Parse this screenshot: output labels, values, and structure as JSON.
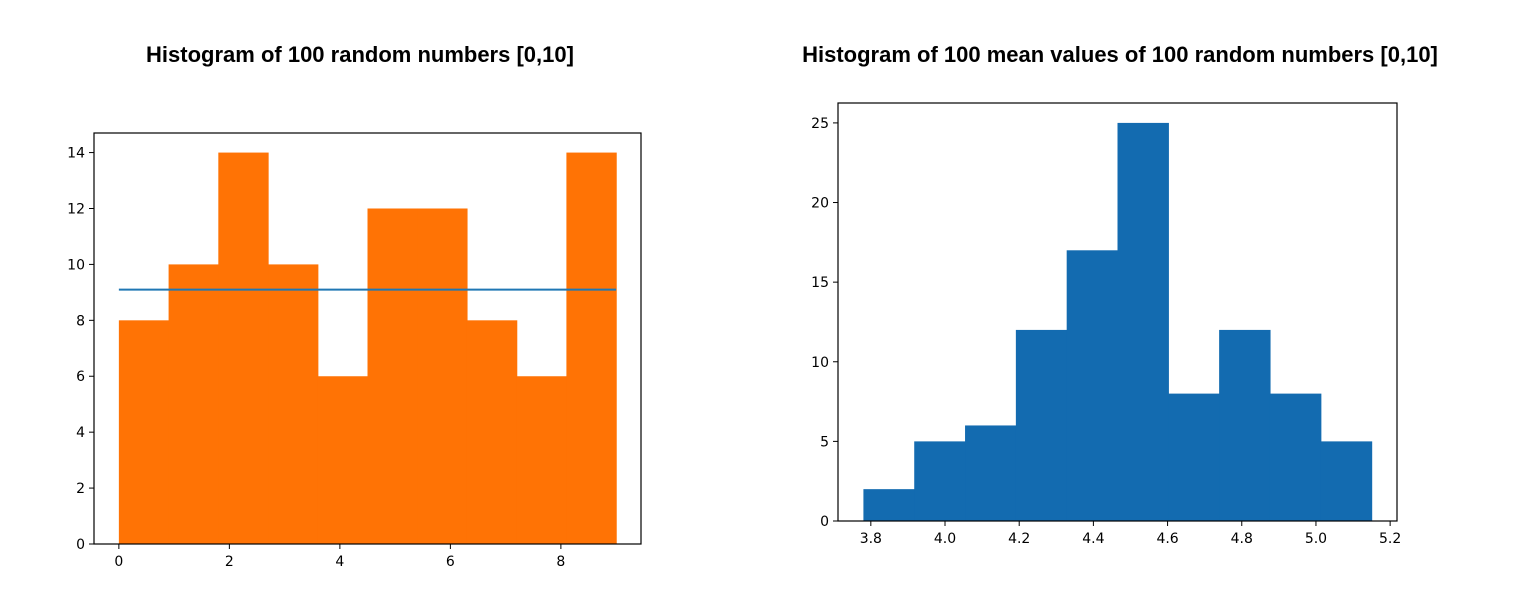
{
  "chart_data": [
    {
      "type": "bar",
      "title": "Histogram of 100 random numbers [0,10]",
      "xlabel": "",
      "ylabel": "",
      "bin_edges": [
        0,
        0.9,
        1.8,
        2.7,
        3.6,
        4.5,
        5.4,
        6.3,
        7.2,
        8.1,
        9.0
      ],
      "values": [
        8,
        10,
        14,
        10,
        6,
        12,
        12,
        8,
        6,
        14
      ],
      "bar_color": "#ff7305",
      "reference_line": {
        "y": 9.1,
        "color": "#1f77b4"
      },
      "xlim": [
        -0.45,
        9.45
      ],
      "ylim": [
        0,
        14.7
      ],
      "xticks": [
        0,
        2,
        4,
        6,
        8
      ],
      "yticks": [
        0,
        2,
        4,
        6,
        8,
        10,
        12,
        14
      ],
      "grid": false
    },
    {
      "type": "bar",
      "title": "Histogram of 100 mean values of 100 random numbers [0,10]",
      "xlabel": "",
      "ylabel": "",
      "bin_edges": [
        3.78,
        3.917,
        4.054,
        4.191,
        4.328,
        4.465,
        4.602,
        4.739,
        4.876,
        5.013,
        5.15
      ],
      "values": [
        2,
        5,
        6,
        12,
        17,
        25,
        8,
        12,
        8,
        5
      ],
      "bar_color": "#136bb0",
      "xlim": [
        3.7115,
        5.2185
      ],
      "ylim": [
        0,
        26.25
      ],
      "xticks": [
        3.8,
        4.0,
        4.2,
        4.4,
        4.6,
        4.8,
        5.0,
        5.2
      ],
      "yticks": [
        0,
        5,
        10,
        15,
        20,
        25
      ],
      "grid": false
    }
  ]
}
